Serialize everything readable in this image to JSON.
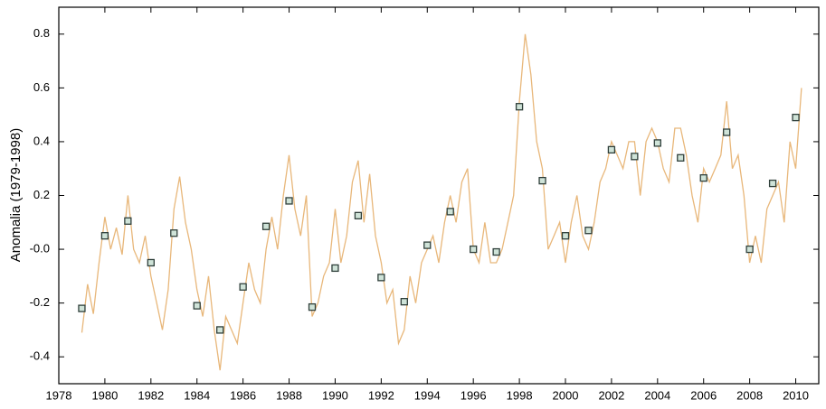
{
  "chart_data": {
    "type": "line",
    "ylabel": "Anomalia (1979-1998)",
    "xlim": [
      1978,
      2011
    ],
    "xticks": [
      1978,
      1980,
      1982,
      1984,
      1986,
      1988,
      1990,
      1992,
      1994,
      1996,
      1998,
      2000,
      2002,
      2004,
      2006,
      2008,
      2010
    ],
    "ylim": [
      -0.5,
      0.9
    ],
    "yticks": [
      -0.4,
      -0.2,
      {
        "value": 0,
        "label": "-0.0"
      },
      0.2,
      0.4,
      0.6,
      0.8
    ],
    "series": [
      {
        "type": "line",
        "color": "#e8b77a",
        "x": [
          1979.0,
          1979.25,
          1979.5,
          1979.75,
          1980.0,
          1980.25,
          1980.5,
          1980.75,
          1981.0,
          1981.25,
          1981.5,
          1981.75,
          1982.0,
          1982.25,
          1982.5,
          1982.75,
          1983.0,
          1983.25,
          1983.5,
          1983.75,
          1984.0,
          1984.25,
          1984.5,
          1984.75,
          1985.0,
          1985.25,
          1985.5,
          1985.75,
          1986.0,
          1986.25,
          1986.5,
          1986.75,
          1987.0,
          1987.25,
          1987.5,
          1987.75,
          1988.0,
          1988.25,
          1988.5,
          1988.75,
          1989.0,
          1989.25,
          1989.5,
          1989.75,
          1990.0,
          1990.25,
          1990.5,
          1990.75,
          1991.0,
          1991.25,
          1991.5,
          1991.75,
          1992.0,
          1992.25,
          1992.5,
          1992.75,
          1993.0,
          1993.25,
          1993.5,
          1993.75,
          1994.0,
          1994.25,
          1994.5,
          1994.75,
          1995.0,
          1995.25,
          1995.5,
          1995.75,
          1996.0,
          1996.25,
          1996.5,
          1996.75,
          1997.0,
          1997.25,
          1997.5,
          1997.75,
          1998.0,
          1998.25,
          1998.5,
          1998.75,
          1999.0,
          1999.25,
          1999.5,
          1999.75,
          2000.0,
          2000.25,
          2000.5,
          2000.75,
          2001.0,
          2001.25,
          2001.5,
          2001.75,
          2002.0,
          2002.25,
          2002.5,
          2002.75,
          2003.0,
          2003.25,
          2003.5,
          2003.75,
          2004.0,
          2004.25,
          2004.5,
          2004.75,
          2005.0,
          2005.25,
          2005.5,
          2005.75,
          2006.0,
          2006.25,
          2006.5,
          2006.75,
          2007.0,
          2007.25,
          2007.5,
          2007.75,
          2008.0,
          2008.25,
          2008.5,
          2008.75,
          2009.0,
          2009.25,
          2009.5,
          2009.75,
          2010.0,
          2010.25
        ],
        "values": [
          -0.31,
          -0.13,
          -0.24,
          -0.05,
          0.12,
          0.0,
          0.08,
          -0.02,
          0.2,
          0.0,
          -0.05,
          0.05,
          -0.1,
          -0.2,
          -0.3,
          -0.15,
          0.15,
          0.27,
          0.1,
          0.0,
          -0.15,
          -0.25,
          -0.1,
          -0.3,
          -0.45,
          -0.25,
          -0.3,
          -0.35,
          -0.2,
          -0.05,
          -0.15,
          -0.2,
          0.0,
          0.12,
          0.0,
          0.2,
          0.35,
          0.15,
          0.05,
          0.2,
          -0.25,
          -0.2,
          -0.1,
          -0.05,
          0.15,
          -0.05,
          0.05,
          0.25,
          0.33,
          0.1,
          0.28,
          0.05,
          -0.05,
          -0.2,
          -0.15,
          -0.35,
          -0.3,
          -0.1,
          -0.2,
          -0.05,
          0.0,
          0.05,
          -0.05,
          0.1,
          0.2,
          0.1,
          0.25,
          0.3,
          0.0,
          -0.05,
          0.1,
          -0.05,
          -0.05,
          0.0,
          0.1,
          0.2,
          0.55,
          0.8,
          0.65,
          0.4,
          0.3,
          0.0,
          0.05,
          0.1,
          -0.05,
          0.1,
          0.2,
          0.05,
          0.0,
          0.1,
          0.25,
          0.3,
          0.4,
          0.35,
          0.3,
          0.4,
          0.4,
          0.2,
          0.4,
          0.45,
          0.4,
          0.3,
          0.25,
          0.45,
          0.45,
          0.35,
          0.2,
          0.1,
          0.3,
          0.25,
          0.3,
          0.35,
          0.55,
          0.3,
          0.35,
          0.2,
          -0.05,
          0.05,
          -0.05,
          0.15,
          0.2,
          0.25,
          0.1,
          0.4,
          0.3,
          0.6
        ]
      },
      {
        "type": "scatter",
        "marker": "square",
        "color": "#2f3f3a",
        "fill": "#cfe3d8",
        "x": [
          1979,
          1980,
          1981,
          1982,
          1983,
          1984,
          1985,
          1986,
          1987,
          1988,
          1989,
          1990,
          1991,
          1992,
          1993,
          1994,
          1995,
          1996,
          1997,
          1998,
          1999,
          2000,
          2001,
          2002,
          2003,
          2004,
          2005,
          2006,
          2007,
          2008,
          2009,
          2010
        ],
        "values": [
          -0.22,
          0.05,
          0.105,
          -0.05,
          0.06,
          -0.21,
          -0.3,
          -0.14,
          0.085,
          0.18,
          -0.215,
          -0.07,
          0.125,
          -0.105,
          -0.195,
          0.015,
          0.14,
          0.0,
          -0.01,
          0.53,
          0.255,
          0.05,
          0.07,
          0.37,
          0.345,
          0.395,
          0.34,
          0.265,
          0.435,
          0.0,
          0.245,
          0.49
        ]
      }
    ]
  }
}
